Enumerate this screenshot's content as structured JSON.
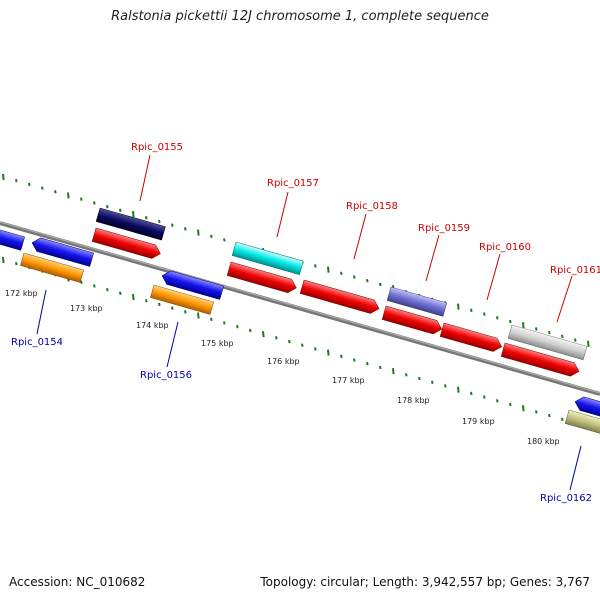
{
  "title": "Ralstonia pickettii 12J chromosome 1, complete sequence",
  "footer": {
    "accession": "Accession: NC_010682",
    "summary": "Topology: circular; Length: 3,942,557 bp; Genes: 3,767"
  },
  "colors": {
    "backbone": "#888888",
    "tick": "#1d7a1d",
    "label_top": "#cc0000",
    "label_bottom": "#0000aa",
    "kbp_text": "#222222"
  },
  "kbp_labels": [
    {
      "text": "172 kbp",
      "pos": 172
    },
    {
      "text": "173 kbp",
      "pos": 173
    },
    {
      "text": "174 kbp",
      "pos": 174
    },
    {
      "text": "175 kbp",
      "pos": 175
    },
    {
      "text": "176 kbp",
      "pos": 176
    },
    {
      "text": "177 kbp",
      "pos": 177
    },
    {
      "text": "178 kbp",
      "pos": 178
    },
    {
      "text": "179 kbp",
      "pos": 179
    },
    {
      "text": "180 kbp",
      "pos": 180
    }
  ],
  "gene_labels": [
    {
      "name": "Rpic_0154",
      "side": "bottom"
    },
    {
      "name": "Rpic_0155",
      "side": "top"
    },
    {
      "name": "Rpic_0156",
      "side": "bottom"
    },
    {
      "name": "Rpic_0157",
      "side": "top"
    },
    {
      "name": "Rpic_0158",
      "side": "top"
    },
    {
      "name": "Rpic_0159",
      "side": "top"
    },
    {
      "name": "Rpic_0160",
      "side": "top"
    },
    {
      "name": "Rpic_0161",
      "side": "top"
    },
    {
      "name": "Rpic_0162",
      "side": "bottom"
    }
  ]
}
